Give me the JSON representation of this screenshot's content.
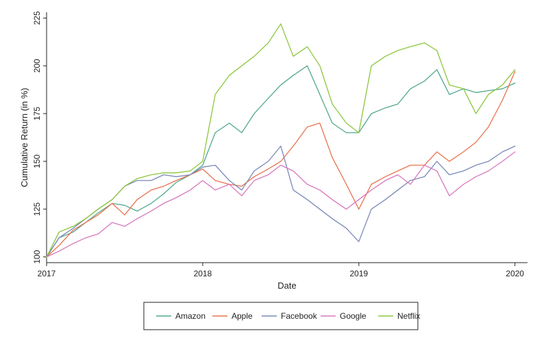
{
  "chart_data": {
    "type": "line",
    "title": "",
    "xlabel": "Date",
    "ylabel": "Cumulative Return (in %)",
    "x_ticks": [
      "2017",
      "2018",
      "2019",
      "2020"
    ],
    "y_ticks": [
      "100",
      "125",
      "150",
      "175",
      "200",
      "225"
    ],
    "xlim": [
      2017,
      2020.08
    ],
    "ylim": [
      97,
      228
    ],
    "grid": false,
    "legend_position": "bottom",
    "x": [
      2017.0,
      2017.08,
      2017.17,
      2017.25,
      2017.33,
      2017.42,
      2017.5,
      2017.58,
      2017.67,
      2017.75,
      2017.83,
      2017.92,
      2018.0,
      2018.08,
      2018.17,
      2018.25,
      2018.33,
      2018.42,
      2018.5,
      2018.58,
      2018.67,
      2018.75,
      2018.83,
      2018.92,
      2019.0,
      2019.08,
      2019.17,
      2019.25,
      2019.33,
      2019.42,
      2019.5,
      2019.58,
      2019.67,
      2019.75,
      2019.83,
      2019.92,
      2020.0
    ],
    "series": [
      {
        "name": "Amazon",
        "color": "#52a88c",
        "values": [
          100,
          110,
          113,
          118,
          123,
          128,
          127,
          124,
          128,
          133,
          139,
          143,
          148,
          165,
          170,
          165,
          175,
          183,
          190,
          195,
          200,
          185,
          170,
          165,
          165,
          175,
          178,
          180,
          188,
          192,
          198,
          185,
          188,
          186,
          187,
          188,
          191
        ]
      },
      {
        "name": "Apple",
        "color": "#e8734f",
        "values": [
          100,
          106,
          114,
          118,
          122,
          128,
          122,
          130,
          135,
          137,
          140,
          143,
          146,
          140,
          138,
          137,
          142,
          146,
          150,
          158,
          168,
          170,
          152,
          138,
          125,
          138,
          142,
          145,
          148,
          148,
          155,
          150,
          155,
          160,
          168,
          182,
          197
        ]
      },
      {
        "name": "Facebook",
        "color": "#7a88b8",
        "values": [
          100,
          110,
          115,
          120,
          125,
          130,
          137,
          140,
          140,
          143,
          142,
          143,
          147,
          148,
          140,
          135,
          145,
          150,
          158,
          135,
          130,
          125,
          120,
          115,
          108,
          125,
          130,
          135,
          140,
          142,
          150,
          143,
          145,
          148,
          150,
          155,
          158
        ]
      },
      {
        "name": "Google",
        "color": "#d678bd",
        "values": [
          100,
          103,
          107,
          110,
          112,
          118,
          116,
          120,
          124,
          128,
          131,
          135,
          140,
          135,
          138,
          132,
          140,
          143,
          148,
          145,
          138,
          135,
          130,
          125,
          130,
          135,
          140,
          143,
          138,
          148,
          145,
          132,
          138,
          142,
          145,
          150,
          155
        ]
      },
      {
        "name": "Netflix",
        "color": "#8cc63e",
        "values": [
          100,
          113,
          116,
          120,
          125,
          130,
          137,
          141,
          143,
          144,
          144,
          145,
          150,
          185,
          195,
          200,
          205,
          212,
          222,
          205,
          210,
          200,
          180,
          170,
          165,
          200,
          205,
          208,
          210,
          212,
          208,
          190,
          188,
          175,
          185,
          190,
          198
        ]
      }
    ]
  }
}
